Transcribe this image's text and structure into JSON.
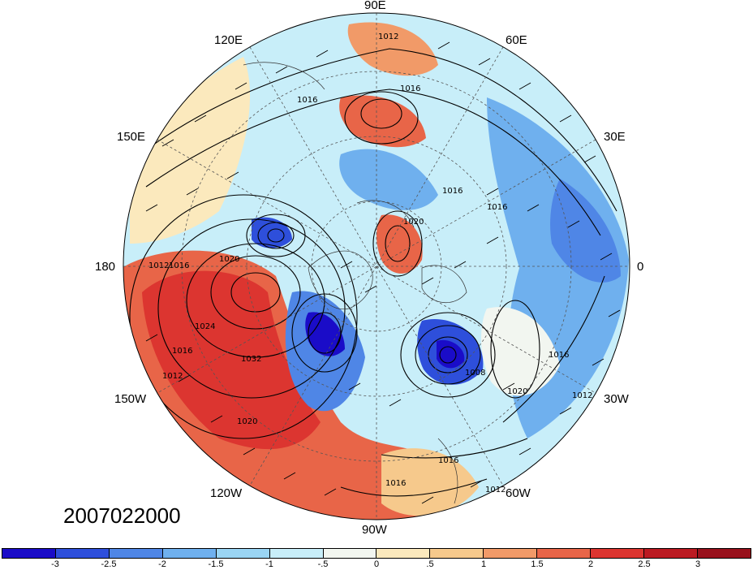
{
  "map": {
    "projection": "north-polar-stereographic",
    "field": "shaded anomaly with sea-level pressure contours (hPa) and wind barbs",
    "longitude_labels": [
      "90E",
      "60E",
      "120E",
      "30E",
      "150E",
      "180",
      "0",
      "150W",
      "30W",
      "120W",
      "60W",
      "90W"
    ],
    "contour_labels": [
      "1012",
      "1016",
      "1016",
      "1016",
      "1012",
      "1016",
      "1020",
      "1024",
      "1032",
      "1016",
      "1012",
      "1020",
      "1008",
      "1016",
      "1012",
      "1020",
      "1016",
      "1016",
      "1012",
      "1020",
      "1016"
    ]
  },
  "date_stamp": "2007022000",
  "colorbar": {
    "colors": [
      "#1a0cc8",
      "#2e4fdb",
      "#4f86e6",
      "#6fb0ee",
      "#9ad5f4",
      "#c8eef9",
      "#f2f6f0",
      "#fbe9bd",
      "#f6c98c",
      "#f19a68",
      "#e86548",
      "#dc3530",
      "#bb1a22",
      "#98111c"
    ],
    "tick_labels": [
      "-3",
      "-2.5",
      "-2",
      "-1.5",
      "-1",
      "-.5",
      "0",
      ".5",
      "1",
      "1.5",
      "2",
      "2.5",
      "3"
    ]
  }
}
